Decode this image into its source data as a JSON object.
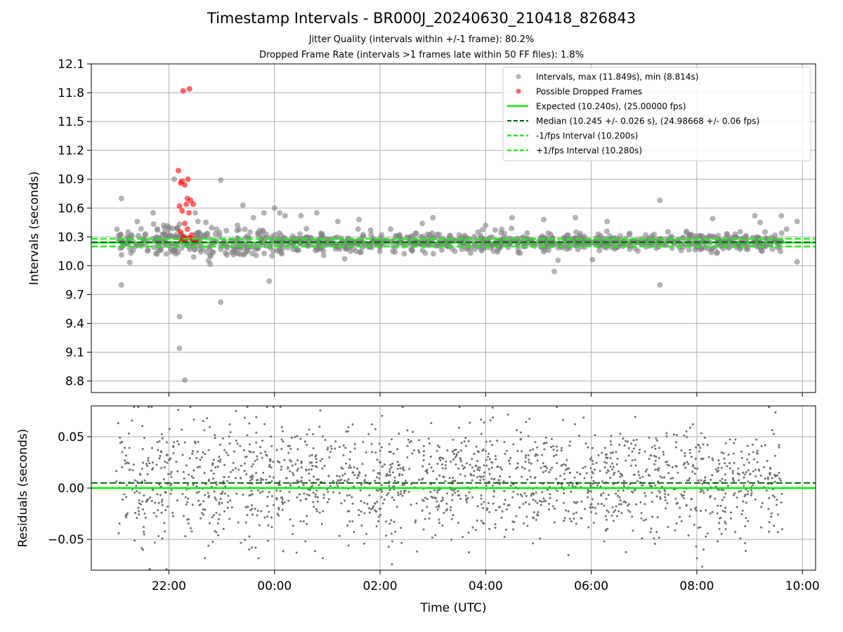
{
  "header": {
    "title": "Timestamp Intervals - BR000J_20240630_210418_826843",
    "subtitle_line1": "Jitter Quality (intervals within +/-1 frame): 80.2%",
    "subtitle_line2": "Dropped Frame Rate (intervals >1 frames late within 50 FF files): 1.8%"
  },
  "colors": {
    "intervals": "#808080",
    "dropped": "#ff0000",
    "expected": "#00ee00",
    "median": "#006400",
    "bounds": "#22ee22",
    "grid": "#b0b0b0"
  },
  "chart_data": [
    {
      "type": "scatter",
      "panel": "top",
      "xlabel": "",
      "ylabel": "Intervals (seconds)",
      "x_unit": "hours since 21:00 UTC (2024-06-30)",
      "xlim": [
        -0.47,
        13.25
      ],
      "ylim": [
        8.68,
        12.1
      ],
      "y_ticks": [
        8.8,
        9.1,
        9.4,
        9.7,
        10.0,
        10.3,
        10.6,
        10.9,
        11.2,
        11.5,
        11.8,
        12.1
      ],
      "y_tick_labels": [
        "8.8",
        "9.1",
        "9.4",
        "9.7",
        "10.0",
        "10.3",
        "10.6",
        "10.9",
        "11.2",
        "11.5",
        "11.8",
        "12.1"
      ],
      "grid": true,
      "legend_position": "top-right",
      "legend": [
        "Intervals, max (11.849s), min (8.814s)",
        "Possible Dropped Frames",
        "Expected (10.240s), (25.00000 fps)",
        "Median (10.245 +/- 0.026 s), (24.98668 +/- 0.06 fps)",
        "-1/fps Interval (10.200s)",
        "+1/fps Interval (10.280s)"
      ],
      "series": [
        {
          "name": "Intervals, max (11.849s), min (8.814s)",
          "outliers": [
            [
              0.1,
              10.7
            ],
            [
              0.1,
              9.8
            ],
            [
              0.4,
              10.46
            ],
            [
              0.7,
              10.55
            ],
            [
              0.9,
              10.42
            ],
            [
              1.2,
              9.47
            ],
            [
              1.3,
              8.81
            ],
            [
              1.2,
              9.14
            ],
            [
              1.1,
              10.9
            ],
            [
              1.5,
              10.55
            ],
            [
              1.55,
              10.46
            ],
            [
              1.7,
              10.45
            ],
            [
              1.98,
              10.89
            ],
            [
              1.98,
              9.62
            ],
            [
              1.9,
              10.38
            ],
            [
              2.3,
              10.42
            ],
            [
              2.4,
              10.63
            ],
            [
              2.6,
              10.5
            ],
            [
              2.8,
              10.55
            ],
            [
              3.0,
              10.6
            ],
            [
              3.1,
              10.55
            ],
            [
              2.9,
              9.84
            ],
            [
              3.2,
              10.52
            ],
            [
              3.5,
              10.52
            ],
            [
              3.8,
              10.55
            ],
            [
              4.2,
              10.46
            ],
            [
              4.6,
              10.48
            ],
            [
              5.2,
              10.38
            ],
            [
              6.0,
              10.5
            ],
            [
              7.5,
              10.5
            ],
            [
              8.1,
              10.48
            ],
            [
              8.7,
              10.5
            ],
            [
              10.3,
              10.68
            ],
            [
              10.3,
              9.8
            ],
            [
              9.3,
              10.46
            ],
            [
              11.3,
              10.49
            ],
            [
              12.1,
              10.52
            ],
            [
              12.2,
              10.45
            ],
            [
              12.6,
              10.52
            ],
            [
              12.9,
              10.46
            ],
            [
              12.7,
              10.38
            ],
            [
              7.0,
              10.42
            ],
            [
              5.8,
              10.44
            ],
            [
              8.3,
              9.94
            ],
            [
              12.9,
              10.04
            ]
          ],
          "min": 8.814,
          "max": 11.849
        },
        {
          "name": "Possible Dropped Frames",
          "points": [
            [
              1.27,
              11.82
            ],
            [
              1.39,
              11.84
            ],
            [
              1.18,
              10.99
            ],
            [
              1.22,
              10.86
            ],
            [
              1.3,
              10.84
            ],
            [
              1.36,
              10.9
            ],
            [
              1.25,
              10.88
            ],
            [
              1.35,
              10.7
            ],
            [
              1.41,
              10.68
            ],
            [
              1.2,
              10.62
            ],
            [
              1.33,
              10.64
            ],
            [
              1.46,
              10.64
            ],
            [
              1.25,
              10.57
            ],
            [
              1.38,
              10.55
            ],
            [
              1.3,
              10.44
            ],
            [
              1.35,
              10.38
            ],
            [
              1.22,
              10.35
            ],
            [
              1.43,
              10.32
            ],
            [
              1.28,
              10.3
            ],
            [
              1.4,
              10.29
            ],
            [
              1.47,
              10.27
            ],
            [
              1.24,
              10.26
            ],
            [
              1.52,
              10.25
            ],
            [
              1.32,
              10.28
            ]
          ]
        }
      ],
      "reference_lines": {
        "expected": 10.24,
        "median": 10.245,
        "minus_1_fps": 10.2,
        "plus_1_fps": 10.28
      }
    },
    {
      "type": "scatter",
      "panel": "bottom",
      "xlabel": "Time (UTC)",
      "ylabel": "Residuals (seconds)",
      "x_unit": "hours since 21:00 UTC (2024-06-30)",
      "xlim": [
        -0.47,
        13.25
      ],
      "ylim": [
        -0.08,
        0.08
      ],
      "x_ticks": [
        1,
        3,
        5,
        7,
        9,
        11,
        13
      ],
      "x_tick_labels": [
        "22:00",
        "00:00",
        "02:00",
        "04:00",
        "06:00",
        "08:00",
        "10:00"
      ],
      "y_ticks": [
        -0.05,
        0.0,
        0.05
      ],
      "y_tick_labels": [
        "−0.05",
        "0.00",
        "0.05"
      ],
      "grid": true,
      "series": [
        {
          "name": "Residuals",
          "x_range": [
            0.0,
            12.62
          ],
          "count": 1800,
          "spread_sd": 0.03
        }
      ],
      "reference_lines": {
        "expected": 0.0,
        "median": 0.005
      }
    }
  ]
}
